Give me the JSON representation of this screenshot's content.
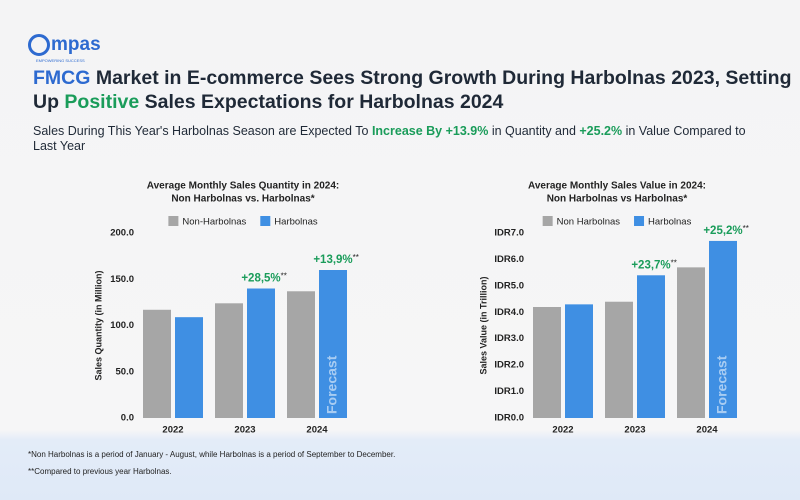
{
  "logo": {
    "text": "mpas",
    "tagline": "EMPOWERING SUCCESS"
  },
  "headline": [
    "FMCG",
    " Market in E-commerce Sees Strong Growth During Harbolnas 2023, Setting Up ",
    "Positive",
    " Sales Expectations for Harbolnas 2024"
  ],
  "subheadline": [
    "Sales During This Year's Harbolnas Season are Expected To ",
    "Increase By +13.9%",
    " in Quantity and ",
    "+25.2%",
    " in Value Compared to Last Year"
  ],
  "chart_data": [
    {
      "type": "bar",
      "title": "Average Monthly Sales Quantity in 2024:",
      "subtitle": "Non Harbolnas vs. Harbolnas*",
      "y_label": "Sales Quantity (in Million)",
      "categories": [
        "2022",
        "2023",
        "2024"
      ],
      "series": [
        {
          "name": "Non-Harbolnas",
          "color": "#a6a6a6",
          "values": [
            117,
            124,
            137
          ]
        },
        {
          "name": "Harbolnas",
          "color": "#3f8fe3",
          "values": [
            109,
            140,
            160
          ]
        }
      ],
      "ylim": [
        0,
        200
      ],
      "yticks": [
        {
          "value": 0,
          "label": "0.0"
        },
        {
          "value": 50,
          "label": "50.0"
        },
        {
          "value": 100,
          "label": "100.0"
        },
        {
          "value": 150,
          "label": "150.0"
        },
        {
          "value": 200,
          "label": "200.0"
        }
      ],
      "annotations": [
        {
          "text": "+28,5%",
          "note": "**"
        },
        {
          "text": "+13,9%",
          "note": "**"
        }
      ],
      "forecast_label": "Forecast"
    },
    {
      "type": "bar",
      "title": "Average Monthly Sales Value in 2024:",
      "subtitle": "Non Harbolnas vs Harbolnas*",
      "y_label": "Sales Value (in Trillion)",
      "categories": [
        "2022",
        "2023",
        "2024"
      ],
      "series": [
        {
          "name": "Non Harbolnas",
          "color": "#a6a6a6",
          "values": [
            4.2,
            4.4,
            5.7
          ]
        },
        {
          "name": "Harbolnas",
          "color": "#3f8fe3",
          "values": [
            4.3,
            5.4,
            6.7
          ]
        }
      ],
      "ylim": [
        0,
        7
      ],
      "yticks": [
        {
          "value": 0,
          "label": "IDR0.0"
        },
        {
          "value": 1,
          "label": "IDR1.0"
        },
        {
          "value": 2,
          "label": "IDR2.0"
        },
        {
          "value": 3,
          "label": "IDR3.0"
        },
        {
          "value": 4,
          "label": "IDR4.0"
        },
        {
          "value": 5,
          "label": "IDR5.0"
        },
        {
          "value": 6,
          "label": "IDR6.0"
        },
        {
          "value": 7,
          "label": "IDR7.0"
        }
      ],
      "annotations": [
        {
          "text": "+23,7%",
          "note": "**"
        },
        {
          "text": "+25,2%",
          "note": "**"
        }
      ],
      "forecast_label": "Forecast"
    }
  ],
  "footnotes": [
    "*Non Harbolnas is a period of January - August, while Harbolnas is a period of September to December.",
    "**Compared to previous year Harbolnas."
  ]
}
